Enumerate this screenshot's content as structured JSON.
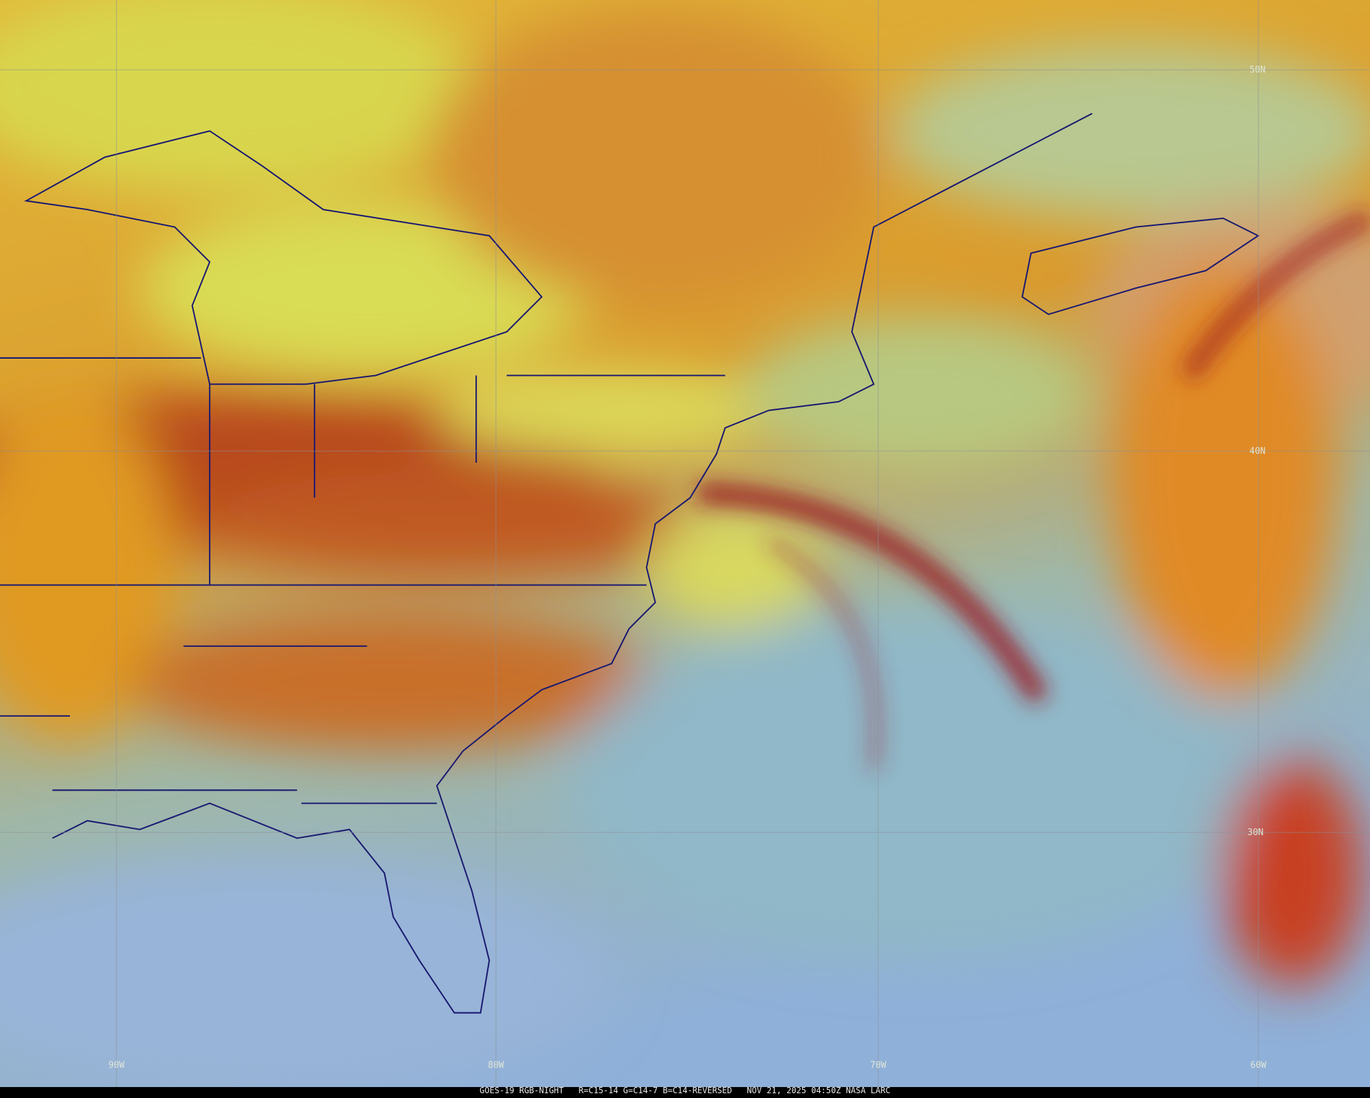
{
  "map": {
    "lat_labels": [
      "50N",
      "40N",
      "30N"
    ],
    "lon_labels": [
      "90W",
      "80W",
      "70W",
      "60W"
    ],
    "footer": "GOES-19 RGB-NIGHT   R=C15-14 G=C14-7 B=C14-REVERSED   NOV 21, 2025 04:50Z NASA LARC"
  }
}
